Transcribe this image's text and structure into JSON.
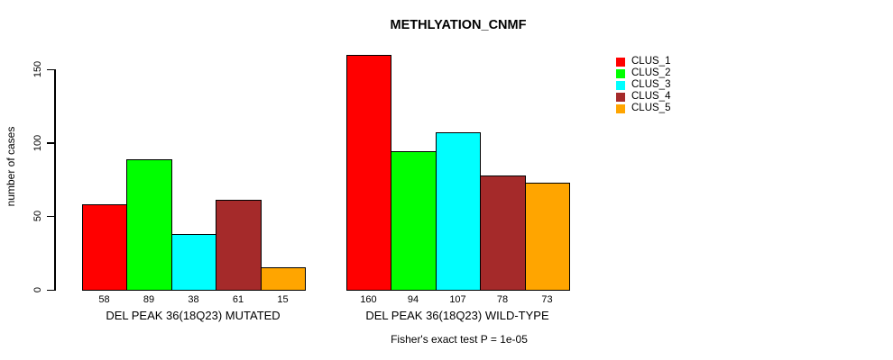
{
  "chart_data": {
    "type": "bar",
    "title": "METHLYATION_CNMF",
    "xlabel": "",
    "ylabel": "number of cases",
    "annotation": "Fisher's exact test P = 1e-05",
    "categories": [
      "DEL PEAK 36(18Q23) MUTATED",
      "DEL PEAK 36(18Q23) WILD-TYPE"
    ],
    "series": [
      {
        "name": "CLUS_1",
        "color": "#FF0000",
        "values": [
          58,
          160
        ]
      },
      {
        "name": "CLUS_2",
        "color": "#00FF00",
        "values": [
          89,
          94
        ]
      },
      {
        "name": "CLUS_3",
        "color": "#00FFFF",
        "values": [
          38,
          107
        ]
      },
      {
        "name": "CLUS_4",
        "color": "#A52A2A",
        "values": [
          61,
          78
        ]
      },
      {
        "name": "CLUS_5",
        "color": "#FFA500",
        "values": [
          15,
          73
        ]
      }
    ],
    "yticks": [
      0,
      50,
      100,
      150
    ],
    "ylim": [
      0,
      160
    ],
    "grid": false,
    "legend_position": "top-right",
    "bar_value_labels": true,
    "bar_border_color": "#000000",
    "background_color": "#FFFFFF",
    "text_color": "#000000"
  }
}
